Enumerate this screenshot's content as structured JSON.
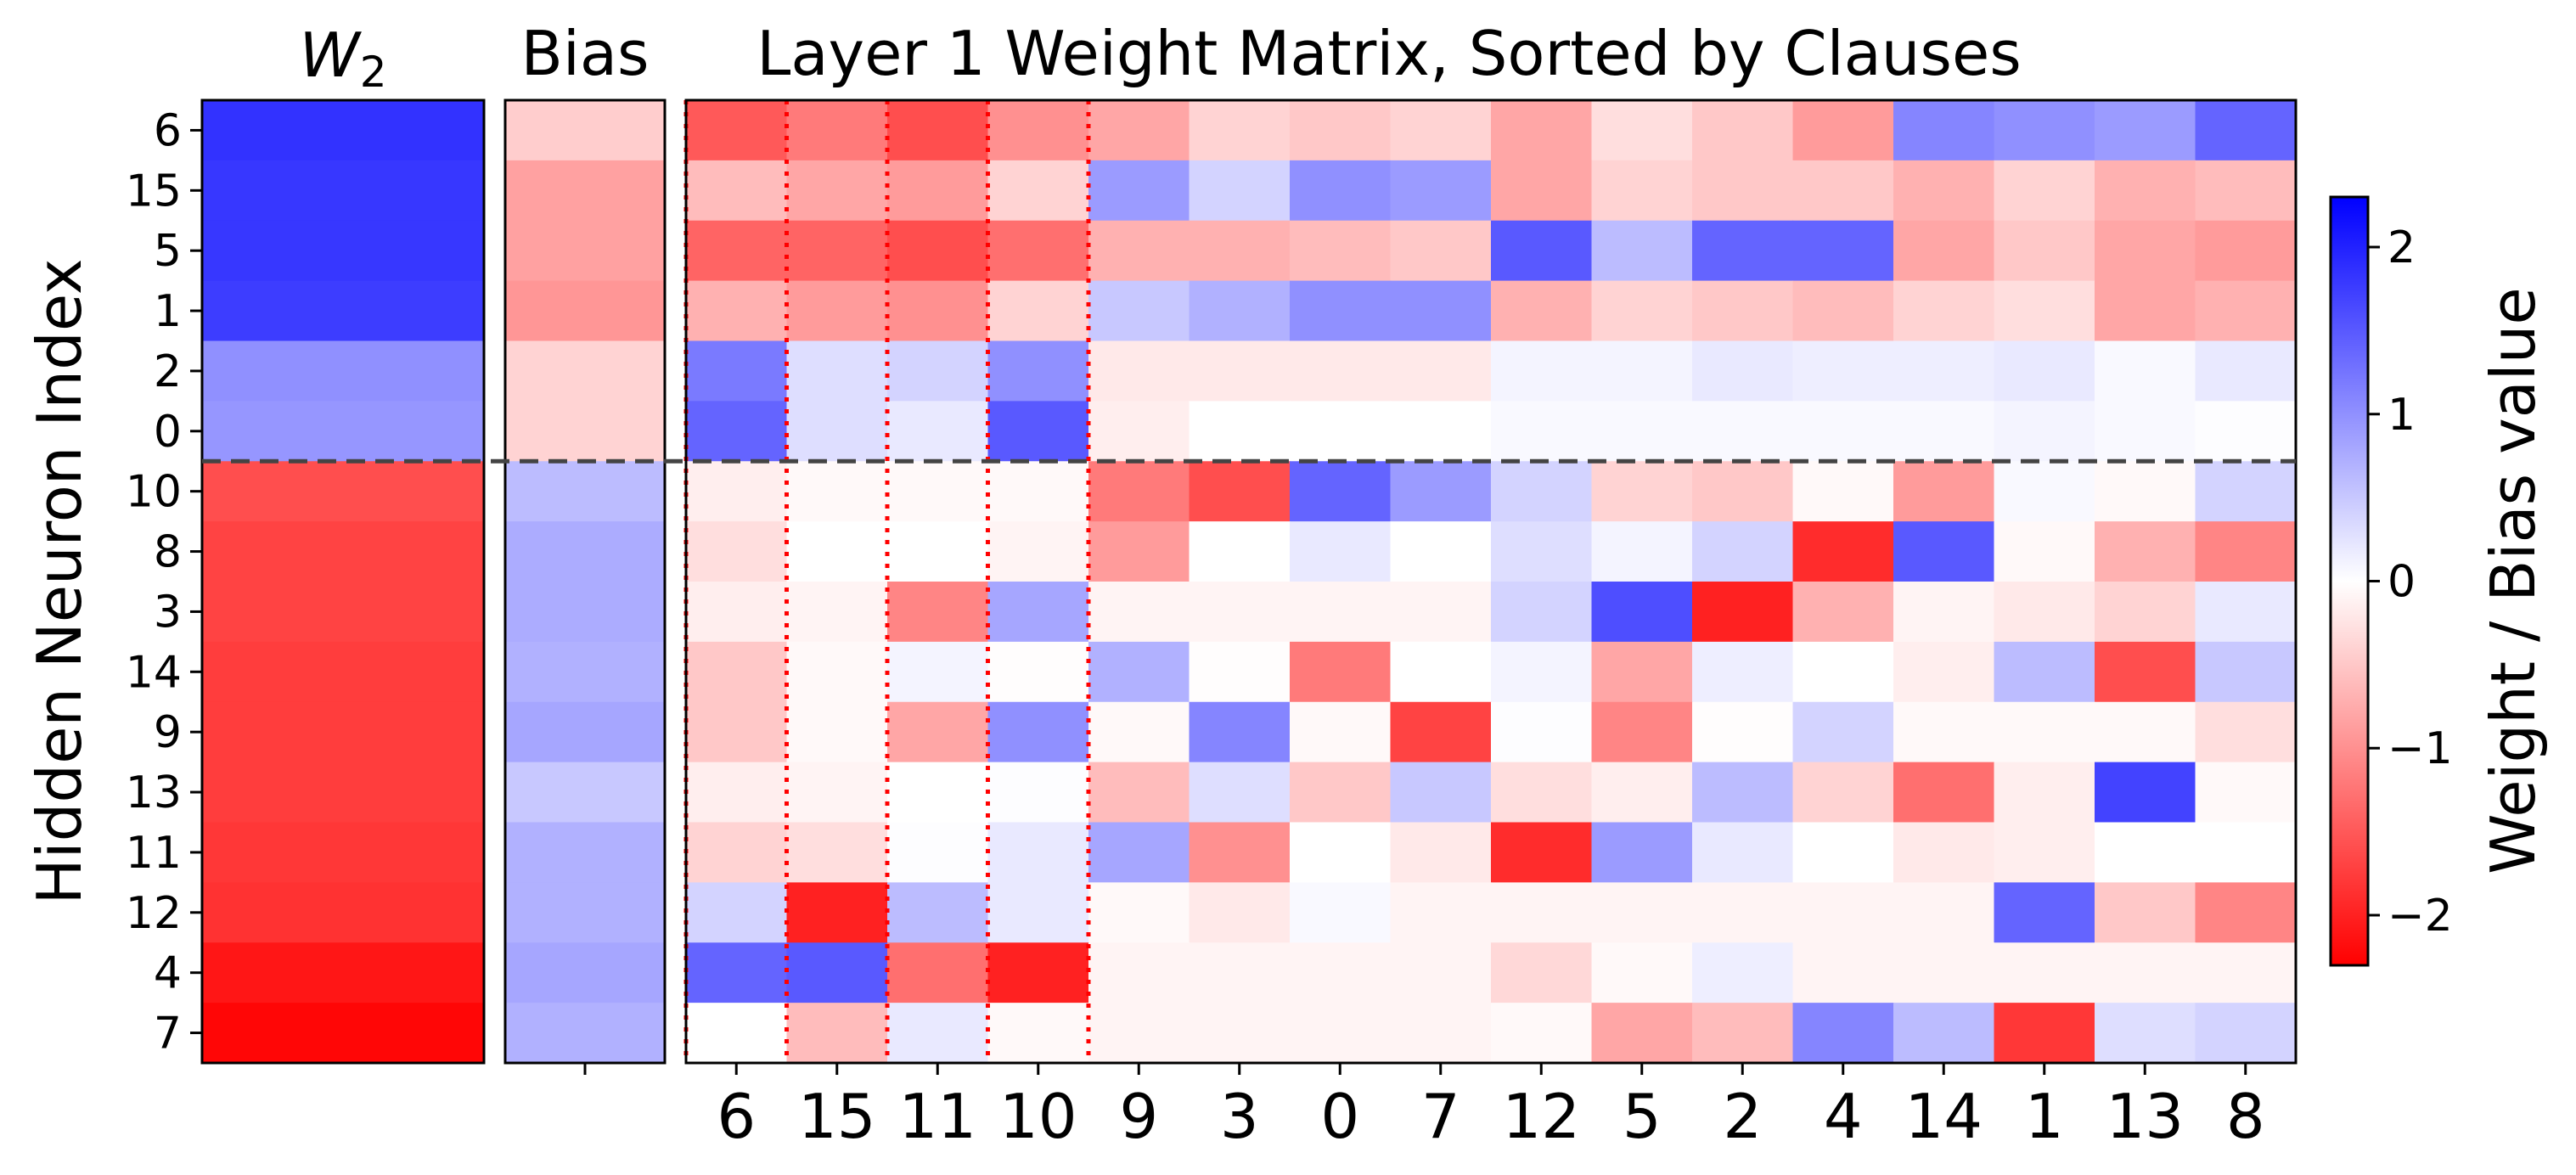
{
  "chart_data": {
    "type": "heatmap",
    "ylabel": "Hidden Neuron Index",
    "w2_title_base": "W",
    "w2_title_subscript": "2",
    "bias_title": "Bias",
    "matrix_title": "Layer 1 Weight Matrix, Sorted by Clauses",
    "colorbar": {
      "label": "Weight / Bias value",
      "vmin": -2.3,
      "vmax": 2.3,
      "ticks": [
        2,
        1,
        0,
        -1,
        -2
      ],
      "tick_labels": [
        "2",
        "1",
        "0",
        "−1",
        "−2"
      ],
      "colormap": [
        "#ff0000",
        "#ffffff",
        "#0000ff"
      ]
    },
    "neurons": [
      "6",
      "15",
      "5",
      "1",
      "2",
      "0",
      "10",
      "8",
      "3",
      "14",
      "9",
      "13",
      "11",
      "12",
      "4",
      "7"
    ],
    "inputs": [
      "6",
      "15",
      "11",
      "10",
      "9",
      "3",
      "0",
      "7",
      "12",
      "5",
      "2",
      "4",
      "14",
      "1",
      "13",
      "8"
    ],
    "w2": [
      1.85,
      1.8,
      1.8,
      1.75,
      1.0,
      0.95,
      -1.6,
      -1.7,
      -1.7,
      -1.75,
      -1.75,
      -1.75,
      -1.8,
      -1.85,
      -2.1,
      -2.25
    ],
    "bias": [
      -0.45,
      -0.85,
      -0.85,
      -0.95,
      -0.4,
      -0.4,
      0.6,
      0.75,
      0.75,
      0.7,
      0.8,
      0.5,
      0.7,
      0.7,
      0.8,
      0.7
    ],
    "separator_after_row": 5,
    "clause_group_boundaries": [
      0,
      1,
      2,
      3,
      4
    ],
    "weights": [
      [
        -1.5,
        -1.2,
        -1.6,
        -1.0,
        -0.8,
        -0.4,
        -0.5,
        -0.4,
        -0.8,
        -0.3,
        -0.5,
        -0.9,
        1.1,
        1.0,
        0.9,
        1.4
      ],
      [
        -0.6,
        -0.8,
        -0.9,
        -0.4,
        0.9,
        0.4,
        1.0,
        0.9,
        -0.8,
        -0.4,
        -0.5,
        -0.5,
        -0.7,
        -0.4,
        -0.7,
        -0.6
      ],
      [
        -1.4,
        -1.4,
        -1.6,
        -1.3,
        -0.7,
        -0.7,
        -0.6,
        -0.5,
        1.5,
        0.6,
        1.4,
        1.4,
        -0.8,
        -0.5,
        -0.8,
        -0.9
      ],
      [
        -0.7,
        -0.9,
        -1.0,
        -0.4,
        0.5,
        0.7,
        1.0,
        1.0,
        -0.7,
        -0.4,
        -0.5,
        -0.6,
        -0.4,
        -0.3,
        -0.8,
        -0.7
      ],
      [
        1.2,
        0.3,
        0.4,
        1.0,
        -0.2,
        -0.2,
        -0.2,
        -0.2,
        0.1,
        0.1,
        0.2,
        0.15,
        0.15,
        0.2,
        0.05,
        0.2
      ],
      [
        1.4,
        0.3,
        0.2,
        1.5,
        -0.15,
        0.0,
        0.0,
        0.0,
        0.05,
        0.05,
        0.05,
        0.05,
        0.05,
        0.1,
        0.05,
        0.02
      ],
      [
        -0.15,
        -0.05,
        -0.05,
        -0.05,
        -1.2,
        -1.6,
        1.4,
        0.9,
        0.4,
        -0.4,
        -0.5,
        -0.05,
        -0.9,
        0.05,
        -0.05,
        0.4
      ],
      [
        -0.3,
        0.0,
        0.0,
        -0.1,
        -0.9,
        0.0,
        0.2,
        0.0,
        0.3,
        0.1,
        0.4,
        -1.9,
        1.5,
        -0.05,
        -0.7,
        -1.1
      ],
      [
        -0.15,
        -0.1,
        -1.1,
        0.8,
        -0.1,
        -0.1,
        -0.1,
        -0.1,
        0.4,
        1.6,
        -2.0,
        -0.7,
        -0.1,
        -0.2,
        -0.4,
        0.2
      ],
      [
        -0.5,
        -0.05,
        0.1,
        -0.02,
        0.7,
        -0.02,
        -1.2,
        0.0,
        0.1,
        -0.8,
        0.15,
        0.0,
        -0.15,
        0.6,
        -1.6,
        0.5
      ],
      [
        -0.5,
        -0.05,
        -0.8,
        1.0,
        -0.05,
        1.1,
        -0.05,
        -1.7,
        0.02,
        -1.1,
        -0.02,
        0.4,
        -0.05,
        -0.05,
        -0.05,
        -0.3
      ],
      [
        -0.15,
        -0.1,
        0.0,
        0.02,
        -0.6,
        0.3,
        -0.5,
        0.5,
        -0.3,
        -0.15,
        0.6,
        -0.4,
        -1.3,
        -0.15,
        1.7,
        -0.05
      ],
      [
        -0.4,
        -0.3,
        0.02,
        0.2,
        0.8,
        -1.0,
        0.0,
        -0.2,
        -1.9,
        0.9,
        0.2,
        0.0,
        -0.2,
        -0.15,
        0.0,
        0.0
      ],
      [
        0.4,
        -2.0,
        0.6,
        0.2,
        -0.05,
        -0.2,
        0.05,
        -0.1,
        -0.1,
        -0.1,
        -0.1,
        -0.1,
        -0.1,
        1.4,
        -0.5,
        -1.1
      ],
      [
        1.4,
        1.5,
        -1.3,
        -2.0,
        -0.1,
        -0.1,
        -0.1,
        -0.1,
        -0.35,
        -0.05,
        0.15,
        -0.1,
        -0.1,
        -0.1,
        -0.1,
        -0.1
      ],
      [
        0.0,
        -0.6,
        0.2,
        -0.05,
        -0.1,
        -0.1,
        -0.1,
        -0.1,
        -0.05,
        -0.8,
        -0.6,
        1.1,
        0.6,
        -1.8,
        0.3,
        0.4
      ]
    ]
  }
}
